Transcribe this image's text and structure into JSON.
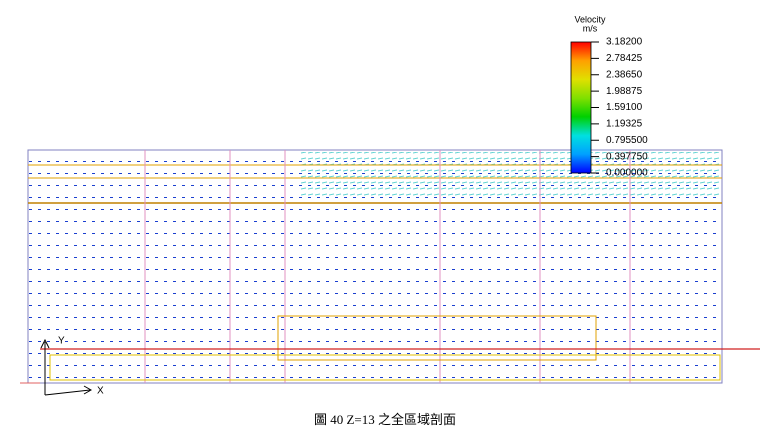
{
  "chart_data": {
    "type": "vector",
    "colorbar_title": "Velocity",
    "colorbar_unit": "m/s",
    "clim": [
      0,
      3.182
    ],
    "colormap": [
      "#0000ff",
      "#00a0ff",
      "#00e0e0",
      "#00d000",
      "#80e000",
      "#e0e000",
      "#ffa000",
      "#ff0000"
    ],
    "cticks": [
      {
        "value": 3.182,
        "label": "3.18200"
      },
      {
        "value": 2.78425,
        "label": "2.78425"
      },
      {
        "value": 2.3865,
        "label": "2.38650"
      },
      {
        "value": 1.98875,
        "label": "1.98875"
      },
      {
        "value": 1.591,
        "label": "1.59100"
      },
      {
        "value": 1.19325,
        "label": "1.19325"
      },
      {
        "value": 0.7955,
        "label": "0.795500"
      },
      {
        "value": 0.39775,
        "label": "0.397750"
      },
      {
        "value": 0,
        "label": "0.000000"
      }
    ],
    "x_axis_label": "X",
    "y_axis_label": "Y",
    "caption": "圖 40 Z=13 之全區域剖面"
  }
}
